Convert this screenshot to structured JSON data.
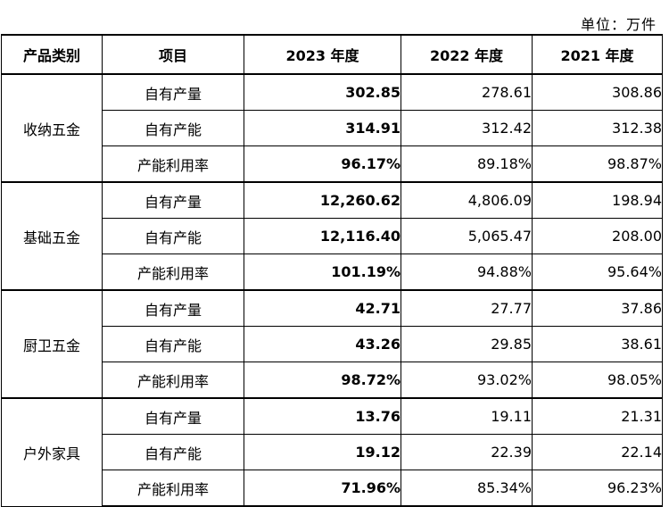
{
  "unit_label": "单位：万件",
  "header": {
    "category": "产品类别",
    "item": "项目",
    "y2023": "2023 年度",
    "y2022": "2022 年度",
    "y2021": "2021 年度"
  },
  "groups": [
    {
      "category": "收纳五金",
      "rows": [
        {
          "item": "自有产量",
          "y2023": "302.85",
          "y2022": "278.61",
          "y2021": "308.86"
        },
        {
          "item": "自有产能",
          "y2023": "314.91",
          "y2022": "312.42",
          "y2021": "312.38"
        },
        {
          "item": "产能利用率",
          "y2023": "96.17%",
          "y2022": "89.18%",
          "y2021": "98.87%"
        }
      ]
    },
    {
      "category": "基础五金",
      "rows": [
        {
          "item": "自有产量",
          "y2023": "12,260.62",
          "y2022": "4,806.09",
          "y2021": "198.94"
        },
        {
          "item": "自有产能",
          "y2023": "12,116.40",
          "y2022": "5,065.47",
          "y2021": "208.00"
        },
        {
          "item": "产能利用率",
          "y2023": "101.19%",
          "y2022": "94.88%",
          "y2021": "95.64%"
        }
      ]
    },
    {
      "category": "厨卫五金",
      "rows": [
        {
          "item": "自有产量",
          "y2023": "42.71",
          "y2022": "27.77",
          "y2021": "37.86"
        },
        {
          "item": "自有产能",
          "y2023": "43.26",
          "y2022": "29.85",
          "y2021": "38.61"
        },
        {
          "item": "产能利用率",
          "y2023": "98.72%",
          "y2022": "93.02%",
          "y2021": "98.05%"
        }
      ]
    },
    {
      "category": "户外家具",
      "rows": [
        {
          "item": "自有产量",
          "y2023": "13.76",
          "y2022": "19.11",
          "y2021": "21.31"
        },
        {
          "item": "自有产能",
          "y2023": "19.12",
          "y2022": "22.39",
          "y2021": "22.14"
        },
        {
          "item": "产能利用率",
          "y2023": "71.96%",
          "y2022": "85.34%",
          "y2021": "96.23%"
        }
      ]
    }
  ]
}
